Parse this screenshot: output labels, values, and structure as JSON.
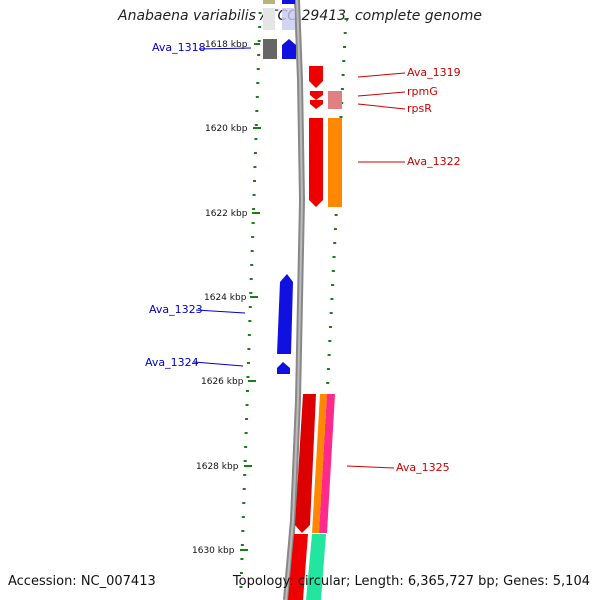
{
  "title": "Anabaena variabilis ATCC 29413, complete genome",
  "footer": {
    "accession": "Accession: NC_007413",
    "summary": "Topology: circular; Length: 6,365,727 bp; Genes: 5,104"
  },
  "scale_labels": [
    "1618 kbp",
    "1620 kbp",
    "1622 kbp",
    "1624 kbp",
    "1626 kbp",
    "1628 kbp",
    "1630 kbp"
  ],
  "genes": [
    {
      "name": "Ava_1318",
      "strand": "forward",
      "color": "#0000cc"
    },
    {
      "name": "Ava_1319",
      "strand": "reverse",
      "color": "#cc0000"
    },
    {
      "name": "rpmG",
      "strand": "reverse",
      "color": "#cc0000"
    },
    {
      "name": "rpsR",
      "strand": "reverse",
      "color": "#cc0000"
    },
    {
      "name": "Ava_1322",
      "strand": "reverse",
      "color": "#cc0000"
    },
    {
      "name": "Ava_1323",
      "strand": "forward",
      "color": "#0000cc"
    },
    {
      "name": "Ava_1324",
      "strand": "forward",
      "color": "#0000cc"
    },
    {
      "name": "Ava_1325",
      "strand": "reverse",
      "color": "#cc0000"
    }
  ]
}
